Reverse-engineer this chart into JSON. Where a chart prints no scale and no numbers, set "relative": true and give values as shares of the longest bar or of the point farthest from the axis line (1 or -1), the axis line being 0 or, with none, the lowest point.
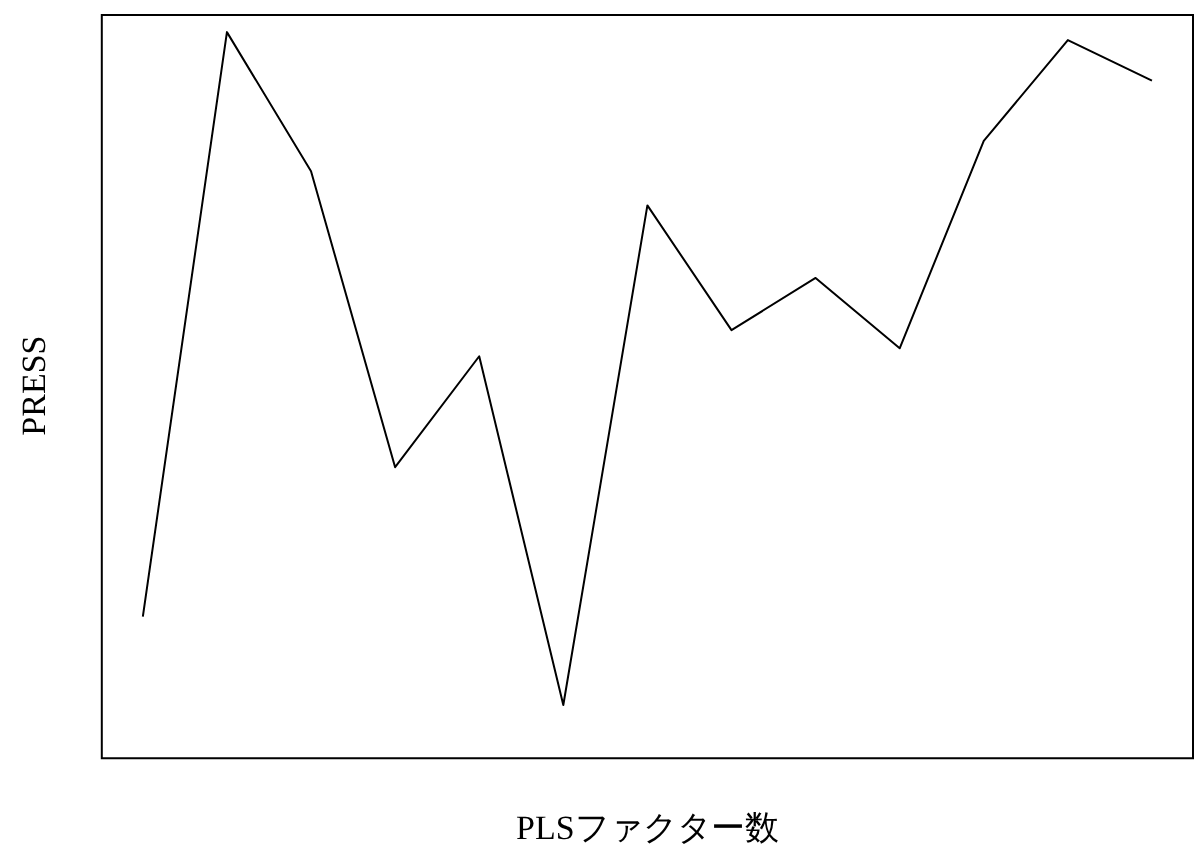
{
  "chart_data": {
    "type": "line",
    "relative": true,
    "xlabel": "PLSファクター数",
    "ylabel": "PRESS",
    "color": "#000000",
    "marker": "none",
    "grid": false,
    "legend": false,
    "categories": [
      null,
      null,
      null,
      null,
      null,
      null,
      null,
      null,
      null,
      null,
      null,
      null,
      null
    ],
    "values": [
      0.194,
      1,
      0.808,
      0.4,
      0.553,
      0.072,
      0.761,
      0.589,
      0.661,
      0.564,
      0.85,
      0.989,
      0.933
    ]
  }
}
